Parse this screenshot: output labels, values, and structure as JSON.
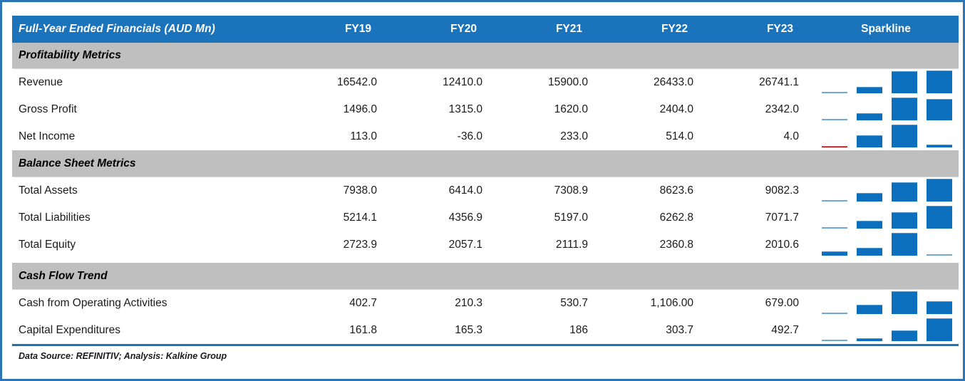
{
  "chart_data": {
    "type": "table",
    "title": "Full-Year Ended Financials (AUD Mn)",
    "year_columns": [
      "FY19",
      "FY20",
      "FY21",
      "FY22",
      "FY23"
    ],
    "sparkline_header": "Sparkline",
    "sparkline_series_years": [
      "FY20",
      "FY21",
      "FY22",
      "FY23"
    ],
    "sections": [
      {
        "header": "Profitability Metrics",
        "rows": [
          {
            "label": "Revenue",
            "display": [
              "16542.0",
              "12410.0",
              "15900.0",
              "26433.0",
              "26741.1"
            ],
            "values": [
              16542.0,
              12410.0,
              15900.0,
              26433.0,
              26741.1
            ],
            "sparkline_values": [
              12410.0,
              15900.0,
              26433.0,
              26741.1
            ]
          },
          {
            "label": "Gross Profit",
            "display": [
              "1496.0",
              "1315.0",
              "1620.0",
              "2404.0",
              "2342.0"
            ],
            "values": [
              1496.0,
              1315.0,
              1620.0,
              2404.0,
              2342.0
            ],
            "sparkline_values": [
              1315.0,
              1620.0,
              2404.0,
              2342.0
            ]
          },
          {
            "label": "Net Income",
            "display": [
              "113.0",
              "-36.0",
              "233.0",
              "514.0",
              "4.0"
            ],
            "values": [
              113.0,
              -36.0,
              233.0,
              514.0,
              4.0
            ],
            "sparkline_values": [
              -36.0,
              233.0,
              514.0,
              4.0
            ]
          }
        ]
      },
      {
        "header": "Balance Sheet Metrics",
        "rows": [
          {
            "label": "Total Assets",
            "display": [
              "7938.0",
              "6414.0",
              "7308.9",
              "8623.6",
              "9082.3"
            ],
            "values": [
              7938.0,
              6414.0,
              7308.9,
              8623.6,
              9082.3
            ],
            "sparkline_values": [
              6414.0,
              7308.9,
              8623.6,
              9082.3
            ]
          },
          {
            "label": "Total Liabilities",
            "display": [
              "5214.1",
              "4356.9",
              "5197.0",
              "6262.8",
              "7071.7"
            ],
            "values": [
              5214.1,
              4356.9,
              5197.0,
              6262.8,
              7071.7
            ],
            "sparkline_values": [
              4356.9,
              5197.0,
              6262.8,
              7071.7
            ]
          },
          {
            "label": "Total Equity",
            "display": [
              "2723.9",
              "2057.1",
              "2111.9",
              "2360.8",
              "2010.6"
            ],
            "values": [
              2723.9,
              2057.1,
              2111.9,
              2360.8,
              2010.6
            ],
            "sparkline_values": [
              2057.1,
              2111.9,
              2360.8,
              2010.6
            ]
          }
        ]
      },
      {
        "header": "Cash Flow Trend",
        "rows": [
          {
            "label": "Cash from Operating Activities",
            "display": [
              "402.7",
              "210.3",
              "530.7",
              "1,106.00",
              "679.00"
            ],
            "values": [
              402.7,
              210.3,
              530.7,
              1106.0,
              679.0
            ],
            "sparkline_values": [
              210.3,
              530.7,
              1106.0,
              679.0
            ]
          },
          {
            "label": "Capital Expenditures",
            "display": [
              "161.8",
              "165.3",
              "186",
              "303.7",
              "492.7"
            ],
            "values": [
              161.8,
              165.3,
              186.0,
              303.7,
              492.7
            ],
            "sparkline_values": [
              165.3,
              186.0,
              303.7,
              492.7
            ]
          }
        ]
      }
    ],
    "footer": "Data Source: REFINITIV; Analysis: Kalkine Group",
    "layout_hints": {
      "sparkline_style": "column",
      "sparkline_min_as_thin_bar": true,
      "negative_color_red": true,
      "legend": "none",
      "grid": "off"
    }
  },
  "colors": {
    "frame_border": "#2E75B6",
    "header_bg": "#1B73BC",
    "header_text": "#FFFFFF",
    "section_band_bg": "#BFBFBF",
    "sparkline_blue": "#0B6FBD",
    "sparkline_thin_blue": "#6FA8D8",
    "sparkline_negative_red": "#C00000",
    "bottom_rule_blue": "#1B73BC"
  }
}
